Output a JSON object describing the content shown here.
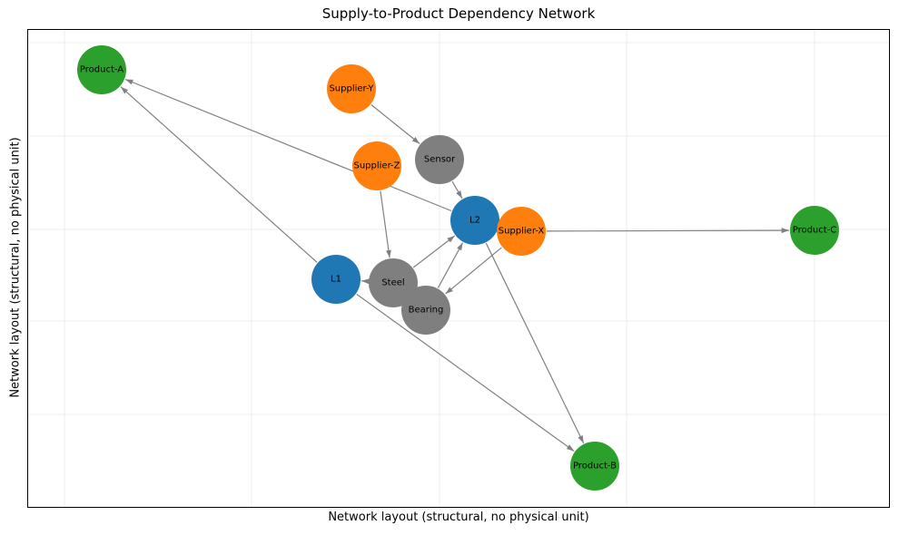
{
  "title": "Supply-to-Product Dependency Network",
  "xlabel": "Network layout (structural, no physical unit)",
  "ylabel": "Network layout (structural, no physical unit)",
  "colors": {
    "supplier": "#ff7f0e",
    "material": "#7f7f7f",
    "line": "#1f77b4",
    "product": "#2ca02c",
    "edge": "#808080",
    "grid": "#e8e8e8"
  },
  "nodes": [
    {
      "id": "Product-A",
      "label": "Product-A",
      "group": "product"
    },
    {
      "id": "Supplier-Y",
      "label": "Supplier-Y",
      "group": "supplier"
    },
    {
      "id": "Supplier-Z",
      "label": "Supplier-Z",
      "group": "supplier"
    },
    {
      "id": "Sensor",
      "label": "Sensor",
      "group": "material"
    },
    {
      "id": "L2",
      "label": "L2",
      "group": "line"
    },
    {
      "id": "Supplier-X",
      "label": "Supplier-X",
      "group": "supplier"
    },
    {
      "id": "Product-C",
      "label": "Product-C",
      "group": "product"
    },
    {
      "id": "L1",
      "label": "L1",
      "group": "line"
    },
    {
      "id": "Steel",
      "label": "Steel",
      "group": "material"
    },
    {
      "id": "Bearing",
      "label": "Bearing",
      "group": "material"
    },
    {
      "id": "Product-B",
      "label": "Product-B",
      "group": "product"
    }
  ],
  "edges": [
    {
      "from": "Supplier-Y",
      "to": "Sensor"
    },
    {
      "from": "Sensor",
      "to": "L2"
    },
    {
      "from": "Supplier-Z",
      "to": "Steel"
    },
    {
      "from": "Supplier-X",
      "to": "Bearing"
    },
    {
      "from": "Supplier-X",
      "to": "Product-C"
    },
    {
      "from": "Steel",
      "to": "L1"
    },
    {
      "from": "Steel",
      "to": "L2"
    },
    {
      "from": "Bearing",
      "to": "L2"
    },
    {
      "from": "L2",
      "to": "Product-A"
    },
    {
      "from": "L2",
      "to": "Product-B"
    },
    {
      "from": "L1",
      "to": "Product-A"
    },
    {
      "from": "L1",
      "to": "Product-B"
    }
  ]
}
